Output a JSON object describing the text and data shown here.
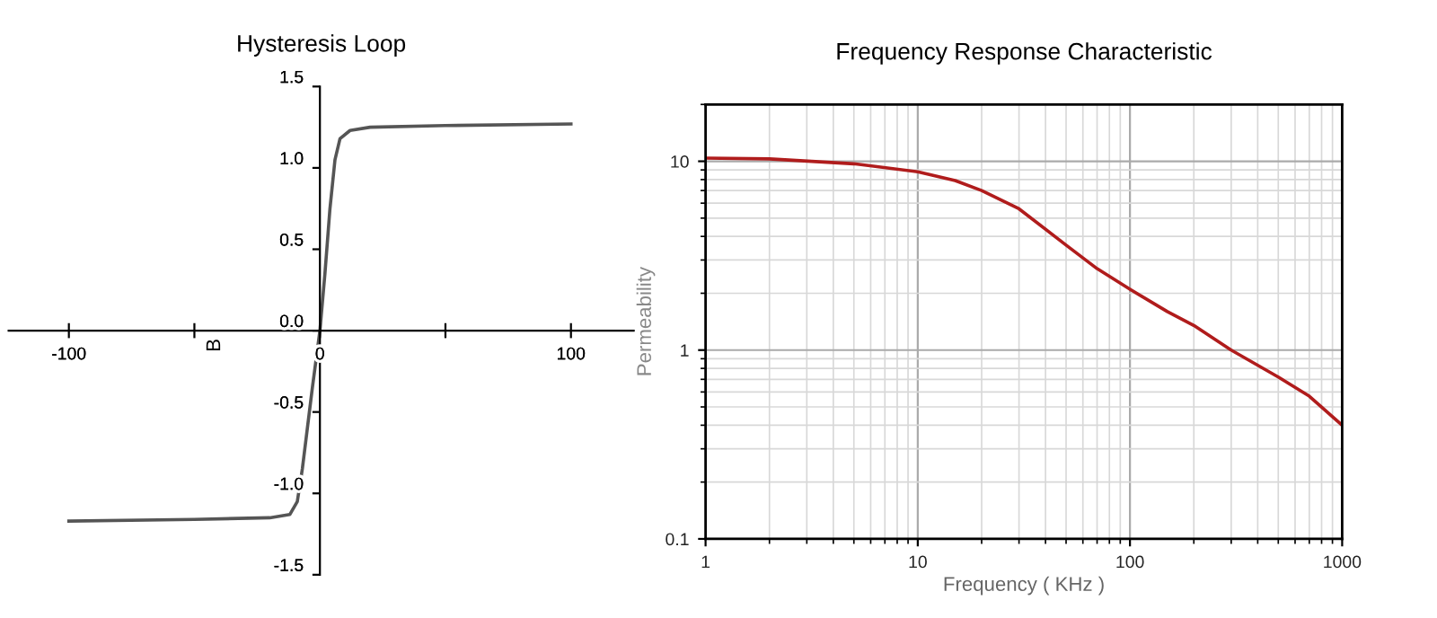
{
  "chart_data": [
    {
      "type": "line",
      "title": "Hysteresis Loop",
      "ylabel": "B",
      "x": [
        -100,
        -50,
        -20,
        -12,
        -9,
        -7,
        -5,
        -3,
        0,
        2,
        4,
        6,
        8,
        12,
        20,
        50,
        100
      ],
      "series": [
        {
          "color": "#555555",
          "values": [
            -1.17,
            -1.16,
            -1.15,
            -1.13,
            -1.05,
            -0.85,
            -0.6,
            -0.35,
            0,
            0.35,
            0.75,
            1.05,
            1.18,
            1.23,
            1.25,
            1.26,
            1.27
          ]
        }
      ],
      "xlim": [
        -124,
        125
      ],
      "ylim": [
        -1.5,
        1.5
      ],
      "xticks": [
        -100,
        {
          "value": -50,
          "label": null
        },
        0,
        {
          "value": 50,
          "label": null
        },
        100
      ],
      "yticks": [
        {
          "value": -1.5,
          "label": "-1.5"
        },
        {
          "value": -1.0,
          "label": "-1.0"
        },
        {
          "value": -0.5,
          "label": "-0.5"
        },
        {
          "value": 0,
          "label": "0.0"
        },
        0.5,
        {
          "value": 1.0,
          "label": "1.0"
        },
        1.5
      ],
      "grid": false
    },
    {
      "type": "line",
      "title": "Frequency Response Characteristic",
      "xlabel": "Frequency ( KHz )",
      "ylabel": "Permeability",
      "log": "xy",
      "x": [
        1,
        2,
        5,
        10,
        15,
        20,
        30,
        50,
        70,
        100,
        150,
        200,
        300,
        500,
        700,
        1000
      ],
      "series": [
        {
          "color": "#b01c1c",
          "values": [
            10.4,
            10.3,
            9.7,
            8.8,
            7.9,
            7.0,
            5.6,
            3.6,
            2.7,
            2.1,
            1.6,
            1.35,
            1.0,
            0.72,
            0.57,
            0.4
          ]
        }
      ],
      "xlim": [
        1,
        1000
      ],
      "ylim": [
        0.1,
        20
      ],
      "xticks": [
        1,
        10,
        100,
        1000
      ],
      "yticks": [
        0.1,
        1,
        10
      ],
      "grid": true
    }
  ]
}
